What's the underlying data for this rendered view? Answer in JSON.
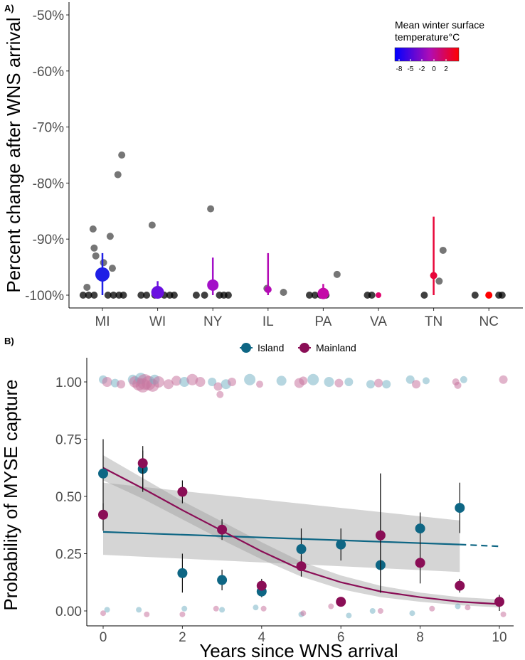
{
  "chart_data": [
    {
      "panel": "A)",
      "type": "scatter",
      "ylabel": "Percent change after WNS arrival",
      "xlabel": "",
      "ylim": [
        -100,
        -50
      ],
      "yticks": [
        -50,
        -60,
        -70,
        -80,
        -90,
        -100
      ],
      "ytick_labels": [
        "-50%",
        "-60%",
        "-70%",
        "-80%",
        "-90%",
        "-100%"
      ],
      "categories": [
        "MI",
        "WI",
        "NY",
        "IL",
        "PA",
        "VA",
        "TN",
        "NC"
      ],
      "legend": {
        "title_line1": "Mean winter surface",
        "title_line2": "temperature°C",
        "ticks": [
          "-8",
          "-5",
          "-2",
          "0",
          "2"
        ],
        "position": "top-right"
      },
      "summary": [
        {
          "state": "MI",
          "mean": -96.3,
          "low": -100,
          "high": -92.5,
          "color": "#1f1fe6",
          "size": 10
        },
        {
          "state": "WI",
          "mean": -99.5,
          "low": -100,
          "high": -97.5,
          "color": "#6a10e0",
          "size": 9
        },
        {
          "state": "NY",
          "mean": -98.2,
          "low": -100,
          "high": -93.3,
          "color": "#a310c8",
          "size": 8
        },
        {
          "state": "IL",
          "mean": -99.0,
          "low": -100,
          "high": -92.5,
          "color": "#b30ab4",
          "size": 5
        },
        {
          "state": "PA",
          "mean": -99.7,
          "low": -100,
          "high": -98.0,
          "color": "#c40aa8",
          "size": 8
        },
        {
          "state": "VA",
          "mean": -100.0,
          "low": -100,
          "high": -100,
          "color": "#e0066e",
          "size": 4
        },
        {
          "state": "TN",
          "mean": -96.5,
          "low": -100,
          "high": -86.0,
          "color": "#e8063a",
          "size": 5
        },
        {
          "state": "NC",
          "mean": -100.0,
          "low": -100,
          "high": -100,
          "color": "#ff0000",
          "size": 5
        }
      ],
      "sites": [
        {
          "state": "MI",
          "offset": 0.35,
          "value": -75.0
        },
        {
          "state": "MI",
          "offset": 0.28,
          "value": -78.5
        },
        {
          "state": "MI",
          "offset": -0.17,
          "value": -88.2
        },
        {
          "state": "MI",
          "offset": 0.14,
          "value": -89.5
        },
        {
          "state": "MI",
          "offset": -0.15,
          "value": -91.6
        },
        {
          "state": "MI",
          "offset": -0.12,
          "value": -93.0
        },
        {
          "state": "MI",
          "offset": 0.18,
          "value": -95.2
        },
        {
          "state": "MI",
          "offset": -0.28,
          "value": -98.6
        },
        {
          "state": "MI",
          "offset": 0.02,
          "value": -94.2
        },
        {
          "state": "MI",
          "offset": -0.35,
          "value": -100
        },
        {
          "state": "MI",
          "offset": -0.25,
          "value": -100
        },
        {
          "state": "MI",
          "offset": -0.15,
          "value": -100
        },
        {
          "state": "MI",
          "offset": 0.1,
          "value": -100
        },
        {
          "state": "MI",
          "offset": 0.2,
          "value": -100
        },
        {
          "state": "MI",
          "offset": 0.3,
          "value": -100
        },
        {
          "state": "MI",
          "offset": 0.38,
          "value": -100
        },
        {
          "state": "WI",
          "offset": -0.1,
          "value": -87.5
        },
        {
          "state": "WI",
          "offset": -0.3,
          "value": -100
        },
        {
          "state": "WI",
          "offset": -0.2,
          "value": -100
        },
        {
          "state": "WI",
          "offset": -0.05,
          "value": -100
        },
        {
          "state": "WI",
          "offset": 0.12,
          "value": -100
        },
        {
          "state": "WI",
          "offset": 0.22,
          "value": -100
        },
        {
          "state": "WI",
          "offset": 0.3,
          "value": -100
        },
        {
          "state": "NY",
          "offset": -0.04,
          "value": -84.6
        },
        {
          "state": "NY",
          "offset": -0.3,
          "value": -100
        },
        {
          "state": "NY",
          "offset": -0.15,
          "value": -100
        },
        {
          "state": "NY",
          "offset": 0.12,
          "value": -100
        },
        {
          "state": "NY",
          "offset": 0.2,
          "value": -100
        },
        {
          "state": "NY",
          "offset": 0.28,
          "value": -100
        },
        {
          "state": "IL",
          "offset": -0.02,
          "value": -98.8
        },
        {
          "state": "IL",
          "offset": 0.28,
          "value": -99.5
        },
        {
          "state": "PA",
          "offset": 0.25,
          "value": -96.3
        },
        {
          "state": "PA",
          "offset": -0.25,
          "value": -100
        },
        {
          "state": "PA",
          "offset": -0.15,
          "value": -100
        },
        {
          "state": "PA",
          "offset": -0.05,
          "value": -100
        },
        {
          "state": "PA",
          "offset": 0.05,
          "value": -100
        },
        {
          "state": "VA",
          "offset": -0.2,
          "value": -100
        },
        {
          "state": "VA",
          "offset": -0.12,
          "value": -100
        },
        {
          "state": "TN",
          "offset": 0.17,
          "value": -92.0
        },
        {
          "state": "TN",
          "offset": 0.1,
          "value": -97.5
        },
        {
          "state": "TN",
          "offset": -0.17,
          "value": -100
        },
        {
          "state": "NC",
          "offset": -0.25,
          "value": -100
        },
        {
          "state": "NC",
          "offset": 0.18,
          "value": -100
        },
        {
          "state": "NC",
          "offset": 0.24,
          "value": -100
        }
      ]
    },
    {
      "panel": "B)",
      "type": "scatter",
      "xlabel": "Years since WNS arrival",
      "ylabel": "Probability of MYSE capture",
      "xlim": [
        -0.5,
        10.3
      ],
      "ylim": [
        -0.05,
        1.06
      ],
      "xticks": [
        0,
        2,
        4,
        6,
        8,
        10
      ],
      "xtick_labels": [
        "0",
        "2",
        "4",
        "6",
        "8",
        "10"
      ],
      "yticks": [
        0,
        0.25,
        0.5,
        0.75,
        1.0
      ],
      "ytick_labels": [
        "0.00",
        "0.25",
        "0.50",
        "0.75",
        "1.00"
      ],
      "legend": {
        "position": "top",
        "labels": [
          "Island",
          "Mainland"
        ]
      },
      "series": [
        {
          "name": "Island",
          "color": "#0e6684",
          "raw_color": "#89bccb",
          "x": [
            0,
            1,
            2,
            3,
            4,
            5,
            6,
            7,
            8,
            9
          ],
          "mean": [
            0.6,
            0.62,
            0.165,
            0.135,
            0.085,
            0.27,
            0.29,
            0.2,
            0.36,
            0.45
          ],
          "low": [
            0.4,
            0.52,
            0.08,
            0.09,
            0.06,
            0.19,
            0.22,
            0.08,
            0.3,
            0.34
          ],
          "high": [
            0.75,
            0.7,
            0.25,
            0.18,
            0.11,
            0.36,
            0.36,
            0.6,
            0.43,
            0.56
          ],
          "fit_x": [
            0,
            9
          ],
          "fit_y": [
            0.345,
            0.29
          ],
          "fit_dashed_x": [
            9,
            10
          ],
          "fit_dashed_y": [
            0.29,
            0.282
          ],
          "ribbon_low": [
            0.245,
            0.17
          ],
          "ribbon_high": [
            0.56,
            0.395
          ]
        },
        {
          "name": "Mainland",
          "color": "#8a0e56",
          "raw_color": "#cf86aa",
          "x": [
            0,
            1,
            2,
            3,
            4,
            5,
            6,
            7,
            8,
            9,
            10
          ],
          "mean": [
            0.42,
            0.645,
            0.52,
            0.355,
            0.11,
            0.195,
            0.04,
            0.33,
            0.21,
            0.11,
            0.04
          ],
          "low": [
            0.35,
            0.53,
            0.47,
            0.31,
            0.09,
            0.15,
            0.03,
            0.08,
            0.12,
            0.08,
            0.0
          ],
          "high": [
            0.47,
            0.72,
            0.57,
            0.4,
            0.14,
            0.24,
            0.05,
            0.6,
            0.3,
            0.14,
            0.07
          ],
          "fit_x": [
            0,
            1,
            2,
            3,
            4,
            5,
            6,
            7,
            8,
            9,
            10
          ],
          "fit_y": [
            0.625,
            0.535,
            0.44,
            0.35,
            0.26,
            0.18,
            0.125,
            0.085,
            0.06,
            0.04,
            0.03
          ],
          "ribbon_low": [
            0.57,
            0.49,
            0.4,
            0.31,
            0.225,
            0.15,
            0.095,
            0.06,
            0.04,
            0.025,
            0.015
          ],
          "ribbon_high": [
            0.68,
            0.58,
            0.48,
            0.39,
            0.3,
            0.215,
            0.155,
            0.11,
            0.08,
            0.06,
            0.05
          ]
        }
      ],
      "raw_points": [
        {
          "g": "I",
          "x": 0.0,
          "y": 1.01,
          "s": 6
        },
        {
          "g": "M",
          "x": 0.1,
          "y": 1.0,
          "s": 7
        },
        {
          "g": "I",
          "x": 0.3,
          "y": 0.995,
          "s": 6
        },
        {
          "g": "M",
          "x": 0.45,
          "y": 0.99,
          "s": 6
        },
        {
          "g": "I",
          "x": 0.75,
          "y": 1.01,
          "s": 7
        },
        {
          "g": "M",
          "x": 0.8,
          "y": 1.0,
          "s": 8
        },
        {
          "g": "M",
          "x": 0.9,
          "y": 0.99,
          "s": 9
        },
        {
          "g": "I",
          "x": 0.95,
          "y": 1.015,
          "s": 8
        },
        {
          "g": "M",
          "x": 1.0,
          "y": 0.985,
          "s": 10
        },
        {
          "g": "M",
          "x": 1.05,
          "y": 1.0,
          "s": 11
        },
        {
          "g": "M",
          "x": 1.15,
          "y": 0.995,
          "s": 10
        },
        {
          "g": "M",
          "x": 1.25,
          "y": 0.985,
          "s": 9
        },
        {
          "g": "I",
          "x": 1.3,
          "y": 1.01,
          "s": 7
        },
        {
          "g": "M",
          "x": 1.4,
          "y": 1.0,
          "s": 8
        },
        {
          "g": "M",
          "x": 1.65,
          "y": 0.99,
          "s": 7
        },
        {
          "g": "M",
          "x": 1.85,
          "y": 1.005,
          "s": 7
        },
        {
          "g": "I",
          "x": 2.05,
          "y": 1.0,
          "s": 7
        },
        {
          "g": "M",
          "x": 2.25,
          "y": 1.01,
          "s": 8
        },
        {
          "g": "M",
          "x": 2.45,
          "y": 1.0,
          "s": 7
        },
        {
          "g": "I",
          "x": 2.75,
          "y": 1.0,
          "s": 6
        },
        {
          "g": "M",
          "x": 2.9,
          "y": 0.98,
          "s": 6
        },
        {
          "g": "M",
          "x": 2.95,
          "y": 0.945,
          "s": 5
        },
        {
          "g": "I",
          "x": 3.1,
          "y": 0.99,
          "s": 7
        },
        {
          "g": "M",
          "x": 3.25,
          "y": 1.0,
          "s": 6
        },
        {
          "g": "I",
          "x": 3.7,
          "y": 1.01,
          "s": 8
        },
        {
          "g": "M",
          "x": 3.95,
          "y": 0.99,
          "s": 5
        },
        {
          "g": "I",
          "x": 4.5,
          "y": 1.005,
          "s": 7
        },
        {
          "g": "M",
          "x": 4.95,
          "y": 0.995,
          "s": 7
        },
        {
          "g": "M",
          "x": 5.05,
          "y": 1.005,
          "s": 6
        },
        {
          "g": "I",
          "x": 5.3,
          "y": 1.01,
          "s": 8
        },
        {
          "g": "I",
          "x": 5.7,
          "y": 1.0,
          "s": 7
        },
        {
          "g": "M",
          "x": 5.95,
          "y": 0.995,
          "s": 6
        },
        {
          "g": "I",
          "x": 6.2,
          "y": 1.0,
          "s": 6
        },
        {
          "g": "I",
          "x": 6.75,
          "y": 0.99,
          "s": 6
        },
        {
          "g": "M",
          "x": 6.95,
          "y": 0.995,
          "s": 6
        },
        {
          "g": "I",
          "x": 7.15,
          "y": 0.99,
          "s": 6
        },
        {
          "g": "I",
          "x": 7.75,
          "y": 1.01,
          "s": 6
        },
        {
          "g": "M",
          "x": 7.9,
          "y": 0.99,
          "s": 6
        },
        {
          "g": "I",
          "x": 8.15,
          "y": 1.005,
          "s": 5
        },
        {
          "g": "M",
          "x": 8.9,
          "y": 1.0,
          "s": 5
        },
        {
          "g": "M",
          "x": 8.95,
          "y": 0.985,
          "s": 5
        },
        {
          "g": "I",
          "x": 9.1,
          "y": 1.01,
          "s": 5
        },
        {
          "g": "M",
          "x": 10.1,
          "y": 1.01,
          "s": 6
        },
        {
          "g": "M",
          "x": 0.0,
          "y": -0.01,
          "s": 4
        },
        {
          "g": "I",
          "x": 0.1,
          "y": 0.005,
          "s": 4
        },
        {
          "g": "I",
          "x": 0.9,
          "y": 0.005,
          "s": 4
        },
        {
          "g": "M",
          "x": 1.1,
          "y": -0.015,
          "s": 4
        },
        {
          "g": "I",
          "x": 2.05,
          "y": 0.01,
          "s": 4
        },
        {
          "g": "M",
          "x": 2.0,
          "y": -0.015,
          "s": 4
        },
        {
          "g": "M",
          "x": 2.85,
          "y": 0.01,
          "s": 4
        },
        {
          "g": "I",
          "x": 3.0,
          "y": 0.005,
          "s": 4
        },
        {
          "g": "I",
          "x": 3.85,
          "y": 0.015,
          "s": 4
        },
        {
          "g": "M",
          "x": 4.05,
          "y": 0.01,
          "s": 4
        },
        {
          "g": "I",
          "x": 5.0,
          "y": -0.015,
          "s": 4
        },
        {
          "g": "M",
          "x": 5.05,
          "y": -0.01,
          "s": 4
        },
        {
          "g": "M",
          "x": 5.75,
          "y": 0.02,
          "s": 4
        },
        {
          "g": "I",
          "x": 6.2,
          "y": -0.02,
          "s": 4
        },
        {
          "g": "I",
          "x": 6.8,
          "y": 0.0,
          "s": 4
        },
        {
          "g": "M",
          "x": 7.0,
          "y": 0.0,
          "s": 4
        },
        {
          "g": "I",
          "x": 7.8,
          "y": -0.01,
          "s": 4
        },
        {
          "g": "M",
          "x": 8.3,
          "y": 0.01,
          "s": 4
        },
        {
          "g": "I",
          "x": 8.95,
          "y": 0.02,
          "s": 4
        },
        {
          "g": "M",
          "x": 9.2,
          "y": 0.015,
          "s": 4
        },
        {
          "g": "M",
          "x": 10.1,
          "y": -0.015,
          "s": 4
        }
      ]
    }
  ]
}
